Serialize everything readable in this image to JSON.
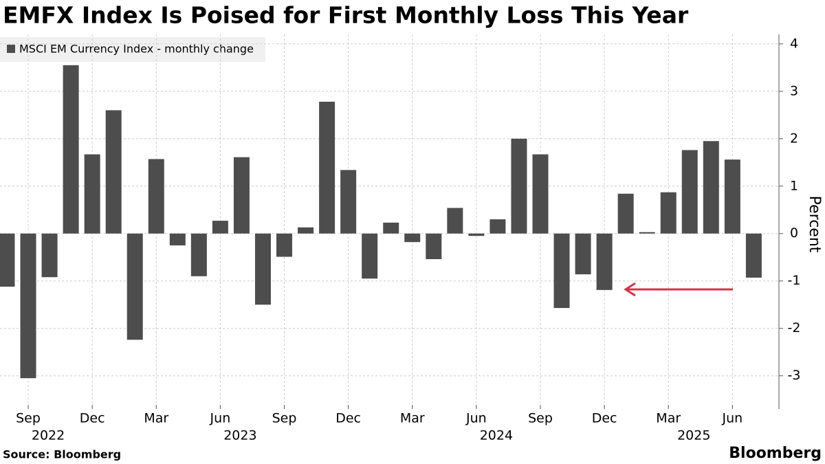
{
  "chart_data": {
    "type": "bar",
    "title": "EMFX Index Is Poised for First Monthly Loss This Year",
    "legend_label": "MSCI EM Currency Index - monthly change",
    "ylabel": "Percent",
    "source": "Source: Bloomberg",
    "brand": "Bloomberg",
    "color": "#4d4d4d",
    "categories": [
      null,
      "Sep",
      null,
      null,
      "Dec",
      null,
      null,
      "Mar",
      null,
      null,
      "Jun",
      null,
      null,
      "Sep",
      null,
      null,
      "Dec",
      null,
      null,
      "Mar",
      null,
      null,
      "Jun",
      null,
      null,
      "Sep",
      null,
      null,
      "Dec",
      null,
      null,
      "Mar",
      null,
      null,
      "Jun",
      null
    ],
    "year_labels": [
      null,
      "2022",
      null,
      null,
      null,
      null,
      null,
      null,
      null,
      null,
      "2023",
      null,
      null,
      null,
      null,
      null,
      null,
      null,
      null,
      null,
      null,
      null,
      "2024",
      null,
      null,
      null,
      null,
      null,
      null,
      null,
      null,
      null,
      "2025",
      null,
      null,
      null
    ],
    "values": [
      -1.12,
      -3.05,
      -0.92,
      3.55,
      1.67,
      2.6,
      -2.24,
      1.57,
      -0.25,
      -0.9,
      0.27,
      1.61,
      -1.5,
      -0.49,
      0.13,
      2.78,
      1.34,
      -0.95,
      0.23,
      -0.18,
      -0.54,
      0.54,
      -0.05,
      0.3,
      2.0,
      1.67,
      -1.57,
      -0.86,
      -1.19,
      0.84,
      0.03,
      0.87,
      1.76,
      1.95,
      1.56,
      -0.93
    ],
    "ylim": [
      -3.7,
      4.2
    ],
    "yticks": [
      -3,
      -2,
      -1,
      0,
      1,
      2,
      3,
      4
    ],
    "grid": true
  }
}
